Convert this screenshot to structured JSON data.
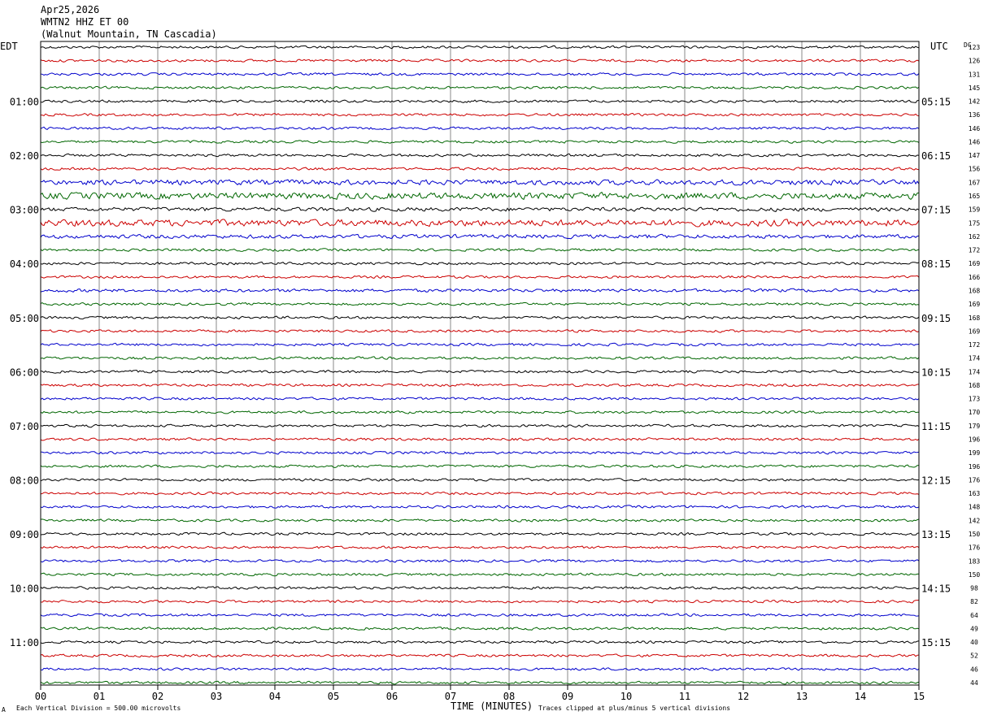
{
  "header": {
    "date": "Apr25,2026",
    "channel": "WMTN2 HHZ ET 00",
    "location": "(Walnut Mountain, TN Cascadia)"
  },
  "left_zone": "EDT",
  "right_zone": "UTC",
  "dc_label": "DC",
  "footer": {
    "scale_note": "Each Vertical Division =  500.00 microvolts",
    "xlabel": "TIME (MINUTES)",
    "clip_note": "Traces clipped at plus/minus 5 vertical divisions",
    "corner_mark": "A"
  },
  "colors": {
    "trace_cycle": [
      "#000000",
      "#cc0000",
      "#0000cc",
      "#006600"
    ],
    "grid": "#888888",
    "frame": "#000000"
  },
  "chart_data": {
    "type": "line",
    "x_ticks": [
      "00",
      "01",
      "02",
      "03",
      "04",
      "05",
      "06",
      "07",
      "08",
      "09",
      "10",
      "11",
      "12",
      "13",
      "14",
      "15"
    ],
    "xlim": [
      0,
      15
    ],
    "trace_count": 48,
    "left_time_labels": [
      "01:00",
      "02:00",
      "03:00",
      "04:00",
      "05:00",
      "06:00",
      "07:00",
      "08:00",
      "09:00",
      "10:00",
      "11:00"
    ],
    "right_time_labels": [
      "05:15",
      "06:15",
      "07:15",
      "08:15",
      "09:15",
      "10:15",
      "11:15",
      "12:15",
      "13:15",
      "14:15",
      "15:15"
    ],
    "dc_offsets": [
      "123",
      "126",
      "131",
      "145",
      "142",
      "136",
      "146",
      "146",
      "147",
      "156",
      "167",
      "165",
      "159",
      "175",
      "162",
      "172",
      "169",
      "166",
      "168",
      "169",
      "168",
      "169",
      "172",
      "174",
      "174",
      "168",
      "173",
      "170",
      "179",
      "196",
      "199",
      "196",
      "176",
      "163",
      "148",
      "142",
      "150",
      "176",
      "183",
      "150",
      "98",
      "82",
      "64",
      "49",
      "40",
      "52",
      "46",
      "44"
    ],
    "trace_amplitude": [
      2,
      2,
      2,
      2,
      2,
      2,
      2,
      2,
      2,
      2,
      4,
      5,
      3,
      5,
      3,
      2,
      2,
      2,
      2.5,
      2,
      2,
      2,
      2,
      2,
      2,
      2,
      2,
      2,
      2,
      2,
      2,
      2,
      2,
      2,
      2,
      2,
      2,
      2,
      2,
      2,
      2,
      2,
      2,
      2,
      2,
      2,
      2,
      2
    ]
  }
}
